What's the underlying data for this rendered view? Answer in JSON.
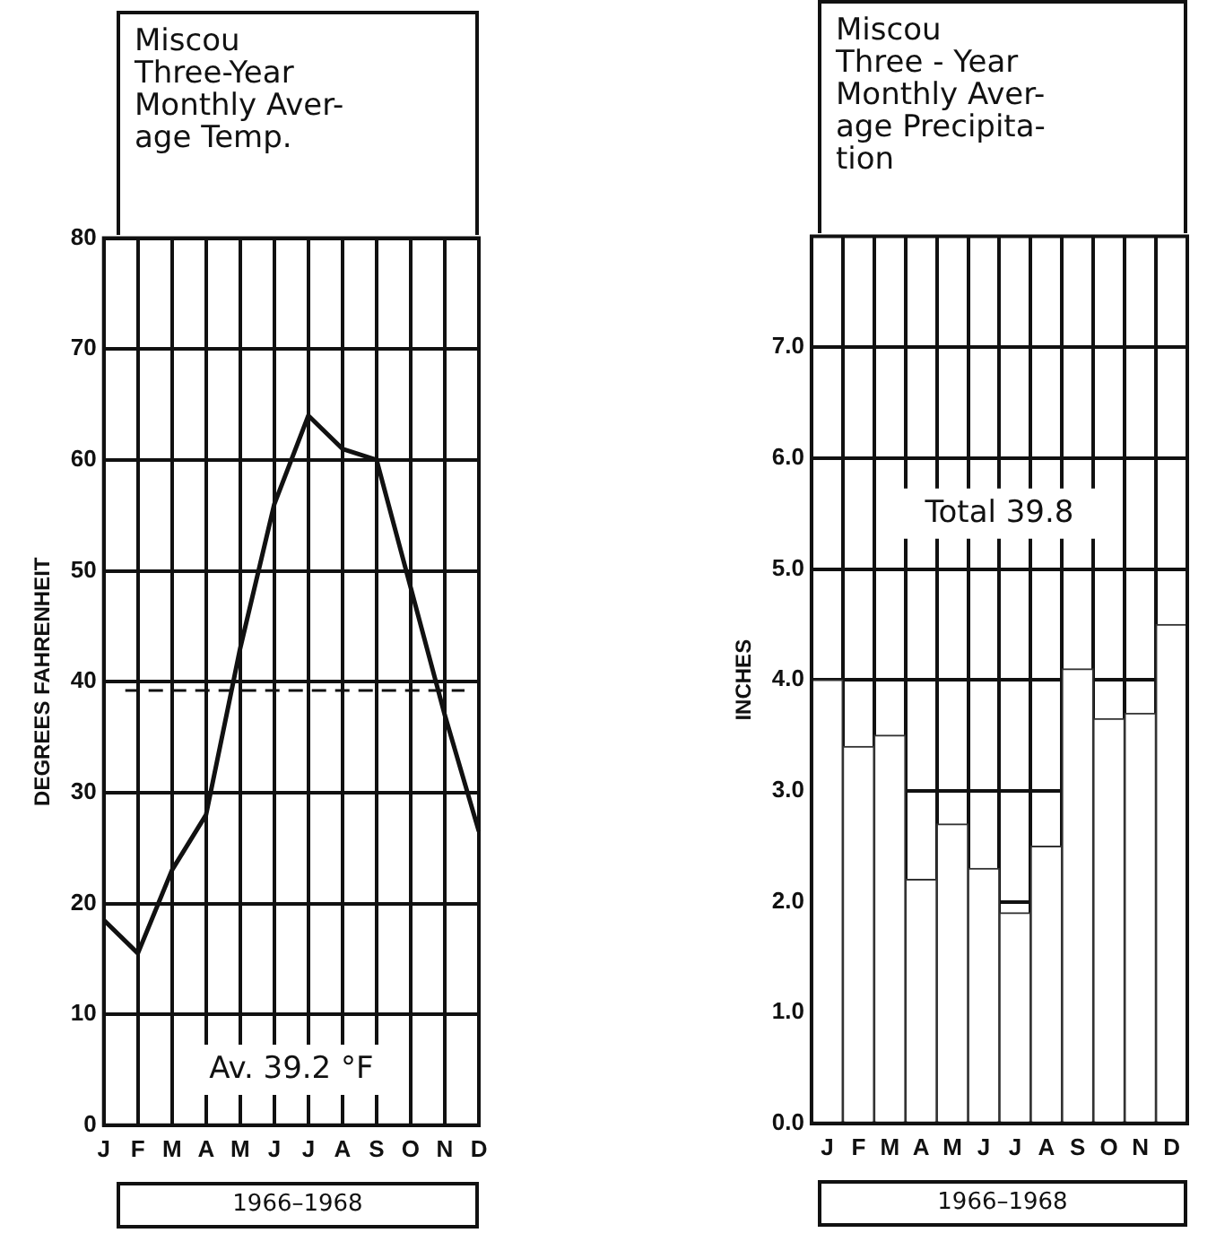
{
  "chart_data": [
    {
      "type": "line",
      "title": "Miscou\nThree-Year\nMonthly Aver-\nage Temp.",
      "ylabel": "DEGREES FAHRENHEIT",
      "categories": [
        "J",
        "F",
        "M",
        "A",
        "M",
        "J",
        "J",
        "A",
        "S",
        "O",
        "N",
        "D"
      ],
      "series": [
        {
          "color": "#111111",
          "values": [
            18.5,
            15.5,
            23,
            28,
            43,
            56,
            64,
            61,
            60,
            48.5,
            37,
            26.5
          ]
        }
      ],
      "ylim": [
        0,
        80
      ],
      "yticks": [
        0,
        10,
        20,
        30,
        40,
        50,
        60,
        70,
        80
      ],
      "grid": true,
      "legend": false,
      "marker": "none",
      "line_style": "solid",
      "ref_lines": [
        {
          "axis": "y",
          "value": 39.2,
          "line_style": "dashed"
        }
      ],
      "annotations": [
        "Av. 39.2 °F",
        "1966–1968"
      ]
    },
    {
      "type": "bar",
      "title": "Miscou\nThree - Year\nMonthly Aver-\nage Precipita-\ntion",
      "ylabel": "INCHES",
      "categories": [
        "J",
        "F",
        "M",
        "A",
        "M",
        "J",
        "J",
        "A",
        "S",
        "O",
        "N",
        "D"
      ],
      "series": [
        {
          "color": "#ffffff",
          "values": [
            4.0,
            3.4,
            3.5,
            2.2,
            2.7,
            2.3,
            1.9,
            2.5,
            4.1,
            3.65,
            3.7,
            4.5
          ]
        }
      ],
      "ylim": [
        0,
        8
      ],
      "yticks": [
        {
          "value": 0,
          "label": "0.0"
        },
        {
          "value": 1,
          "label": "1.0"
        },
        {
          "value": 2,
          "label": "2.0"
        },
        {
          "value": 3,
          "label": "3.0"
        },
        {
          "value": 4,
          "label": "4.0"
        },
        {
          "value": 5,
          "label": "5.0"
        },
        {
          "value": 6,
          "label": "6.0"
        },
        {
          "value": 7,
          "label": "7.0"
        }
      ],
      "grid": true,
      "legend": false,
      "annotations": [
        "Total 39.8",
        "1966–1968"
      ]
    }
  ]
}
